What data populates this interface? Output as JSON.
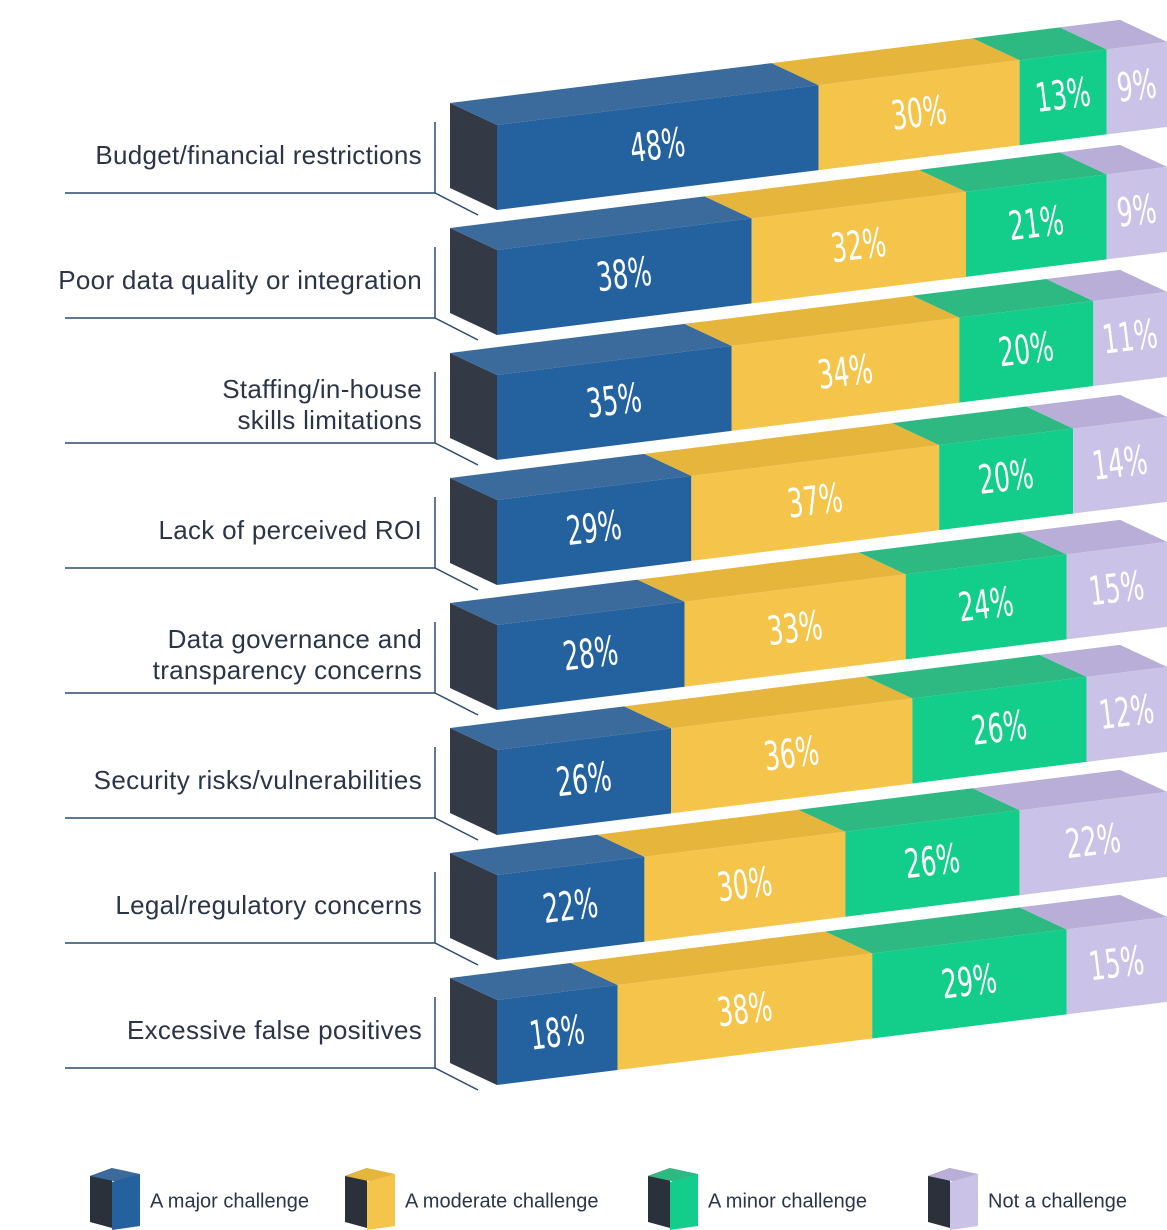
{
  "chart_data": {
    "type": "stacked-bar-3d",
    "categories": [
      "Budget/financial restrictions",
      "Poor data quality or integration",
      "Staffing/in-house\nskills limitations",
      "Lack of perceived ROI",
      "Data governance and\ntransparency concerns",
      "Security risks/vulnerabilities",
      "Legal/regulatory concerns",
      "Excessive false positives"
    ],
    "xlim": [
      0,
      100
    ],
    "series": [
      {
        "name": "A major challenge",
        "color": "#23629e",
        "top_color": "#3b6a9c",
        "values": [
          48,
          38,
          35,
          29,
          28,
          26,
          22,
          18
        ],
        "value_labels": [
          "48%",
          "38%",
          "35%",
          "29%",
          "28%",
          "26%",
          "22%",
          "18%"
        ]
      },
      {
        "name": "A moderate challenge",
        "color": "#f5c44a",
        "top_color": "#e6b53c",
        "values": [
          30,
          32,
          34,
          37,
          33,
          36,
          30,
          38
        ],
        "value_labels": [
          "30%",
          "32%",
          "34%",
          "37%",
          "33%",
          "36%",
          "30%",
          "38%"
        ]
      },
      {
        "name": "A minor challenge",
        "color": "#13cd8a",
        "top_color": "#2fb982",
        "values": [
          13,
          21,
          20,
          20,
          24,
          26,
          26,
          29
        ],
        "value_labels": [
          "13%",
          "21%",
          "20%",
          "20%",
          "24%",
          "26%",
          "26%",
          "29%"
        ]
      },
      {
        "name": "Not a challenge",
        "color": "#cbc2e8",
        "top_color": "#b8aed8",
        "values": [
          9,
          9,
          11,
          14,
          15,
          12,
          22,
          15
        ],
        "value_labels": [
          "9%",
          "9%",
          "11%",
          "14%",
          "15%",
          "12%",
          "22%",
          "15%"
        ]
      }
    ]
  }
}
